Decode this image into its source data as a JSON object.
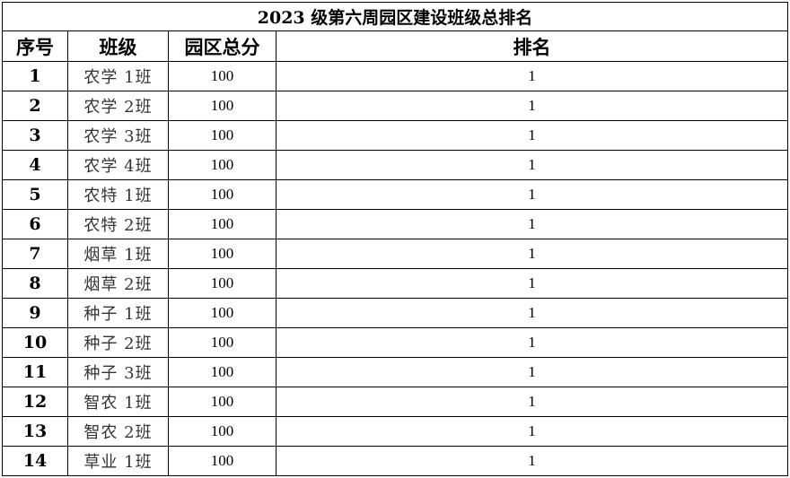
{
  "title": "2023 级第六周园区建设班级总排名",
  "headers": [
    "序号",
    "班级",
    "园区总分",
    "排名"
  ],
  "rows": [
    [
      "1",
      "农学 1班",
      "100",
      "1"
    ],
    [
      "2",
      "农学 2班",
      "100",
      "1"
    ],
    [
      "3",
      "农学 3班",
      "100",
      "1"
    ],
    [
      "4",
      "农学 4班",
      "100",
      "1"
    ],
    [
      "5",
      "农特 1班",
      "100",
      "1"
    ],
    [
      "6",
      "农特 2班",
      "100",
      "1"
    ],
    [
      "7",
      "烟草 1班",
      "100",
      "1"
    ],
    [
      "8",
      "烟草 2班",
      "100",
      "1"
    ],
    [
      "9",
      "种子 1班",
      "100",
      "1"
    ],
    [
      "10",
      "种子 2班",
      "100",
      "1"
    ],
    [
      "11",
      "种子 3班",
      "100",
      "1"
    ],
    [
      "12",
      "智农 1班",
      "100",
      "1"
    ],
    [
      "13",
      "智农 2班",
      "100",
      "1"
    ],
    [
      "14",
      "草业 1班",
      "100",
      "1"
    ]
  ]
}
